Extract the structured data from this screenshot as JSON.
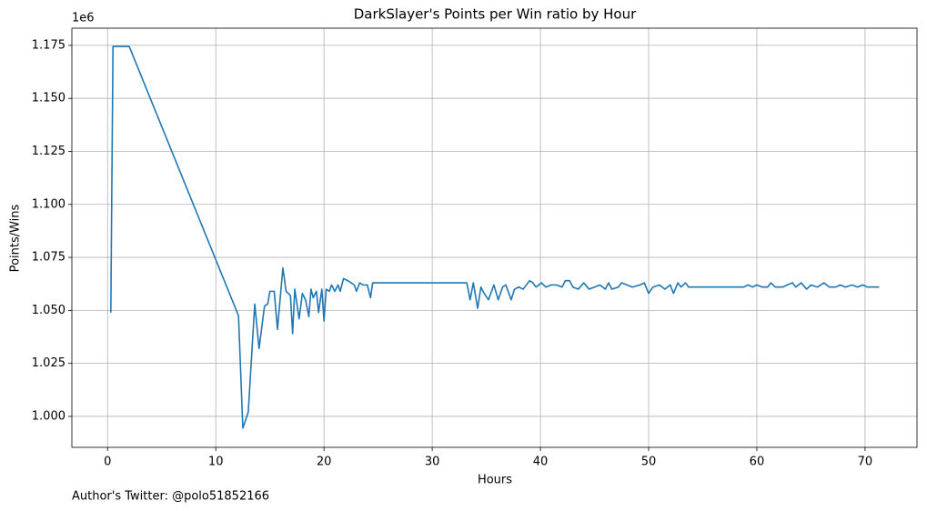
{
  "chart_data": {
    "type": "line",
    "title": "DarkSlayer's Points per Win ratio by Hour",
    "x_label": "Hours",
    "y_label": "Points/Wins",
    "y_offset_label": "1e6",
    "annotation": "Author's Twitter: @polo51852166",
    "color": "#1f77b4",
    "grid": true,
    "xlim": [
      -3.3,
      74.8
    ],
    "ylim": [
      0.9854,
      1.1831
    ],
    "xticks": [
      0,
      10,
      20,
      30,
      40,
      50,
      60,
      70
    ],
    "yticks": [
      {
        "value": 1.0,
        "label": "1.000"
      },
      {
        "value": 1.025,
        "label": "1.025"
      },
      {
        "value": 1.05,
        "label": "1.050"
      },
      {
        "value": 1.075,
        "label": "1.075"
      },
      {
        "value": 1.1,
        "label": "1.100"
      },
      {
        "value": 1.125,
        "label": "1.125"
      },
      {
        "value": 1.15,
        "label": "1.150"
      },
      {
        "value": 1.175,
        "label": "1.175"
      }
    ],
    "x": [
      0.3,
      0.5,
      2.0,
      12.1,
      12.5,
      13.0,
      13.6,
      14.0,
      14.5,
      14.8,
      15.0,
      15.4,
      15.7,
      16.2,
      16.5,
      16.9,
      17.1,
      17.3,
      17.7,
      18.0,
      18.3,
      18.6,
      18.8,
      19.0,
      19.3,
      19.5,
      19.8,
      20.0,
      20.2,
      20.5,
      20.7,
      21.0,
      21.3,
      21.5,
      21.8,
      22.2,
      22.8,
      23.0,
      23.3,
      23.6,
      24.0,
      24.3,
      24.5,
      33.2,
      33.5,
      33.8,
      34.2,
      34.5,
      34.8,
      35.2,
      35.7,
      36.1,
      36.5,
      36.8,
      37.3,
      37.6,
      38.0,
      38.4,
      39.0,
      39.3,
      39.6,
      40.1,
      40.5,
      41.0,
      41.5,
      42.0,
      42.3,
      42.7,
      43.0,
      43.5,
      44.0,
      44.5,
      45.0,
      45.5,
      46.0,
      46.3,
      46.6,
      47.2,
      47.5,
      48.0,
      48.5,
      49.2,
      49.6,
      50.0,
      50.4,
      51.0,
      51.5,
      52.0,
      52.3,
      52.7,
      53.0,
      53.4,
      53.7,
      58.8,
      59.2,
      59.6,
      60.0,
      60.5,
      61.0,
      61.3,
      61.7,
      62.4,
      62.8,
      63.3,
      63.6,
      64.1,
      64.6,
      65.0,
      65.6,
      66.2,
      66.7,
      67.3,
      67.7,
      68.2,
      68.8,
      69.3,
      69.8,
      70.2,
      71.3
    ],
    "values": [
      1.049,
      1.1745,
      1.1745,
      1.0475,
      0.9945,
      1.002,
      1.053,
      1.032,
      1.052,
      1.053,
      1.059,
      1.059,
      1.041,
      1.07,
      1.059,
      1.057,
      1.039,
      1.06,
      1.046,
      1.058,
      1.055,
      1.047,
      1.06,
      1.056,
      1.059,
      1.049,
      1.06,
      1.045,
      1.06,
      1.059,
      1.062,
      1.059,
      1.062,
      1.059,
      1.065,
      1.064,
      1.062,
      1.059,
      1.063,
      1.062,
      1.062,
      1.056,
      1.063,
      1.063,
      1.055,
      1.063,
      1.051,
      1.061,
      1.058,
      1.055,
      1.062,
      1.055,
      1.061,
      1.062,
      1.055,
      1.06,
      1.061,
      1.06,
      1.064,
      1.063,
      1.061,
      1.063,
      1.061,
      1.062,
      1.062,
      1.061,
      1.064,
      1.064,
      1.061,
      1.06,
      1.063,
      1.06,
      1.061,
      1.062,
      1.06,
      1.063,
      1.06,
      1.061,
      1.063,
      1.062,
      1.061,
      1.062,
      1.063,
      1.058,
      1.061,
      1.062,
      1.06,
      1.062,
      1.058,
      1.063,
      1.061,
      1.063,
      1.061,
      1.061,
      1.062,
      1.061,
      1.062,
      1.061,
      1.061,
      1.063,
      1.061,
      1.061,
      1.062,
      1.063,
      1.061,
      1.063,
      1.06,
      1.062,
      1.061,
      1.063,
      1.061,
      1.061,
      1.062,
      1.061,
      1.062,
      1.061,
      1.062,
      1.061,
      1.061
    ]
  }
}
